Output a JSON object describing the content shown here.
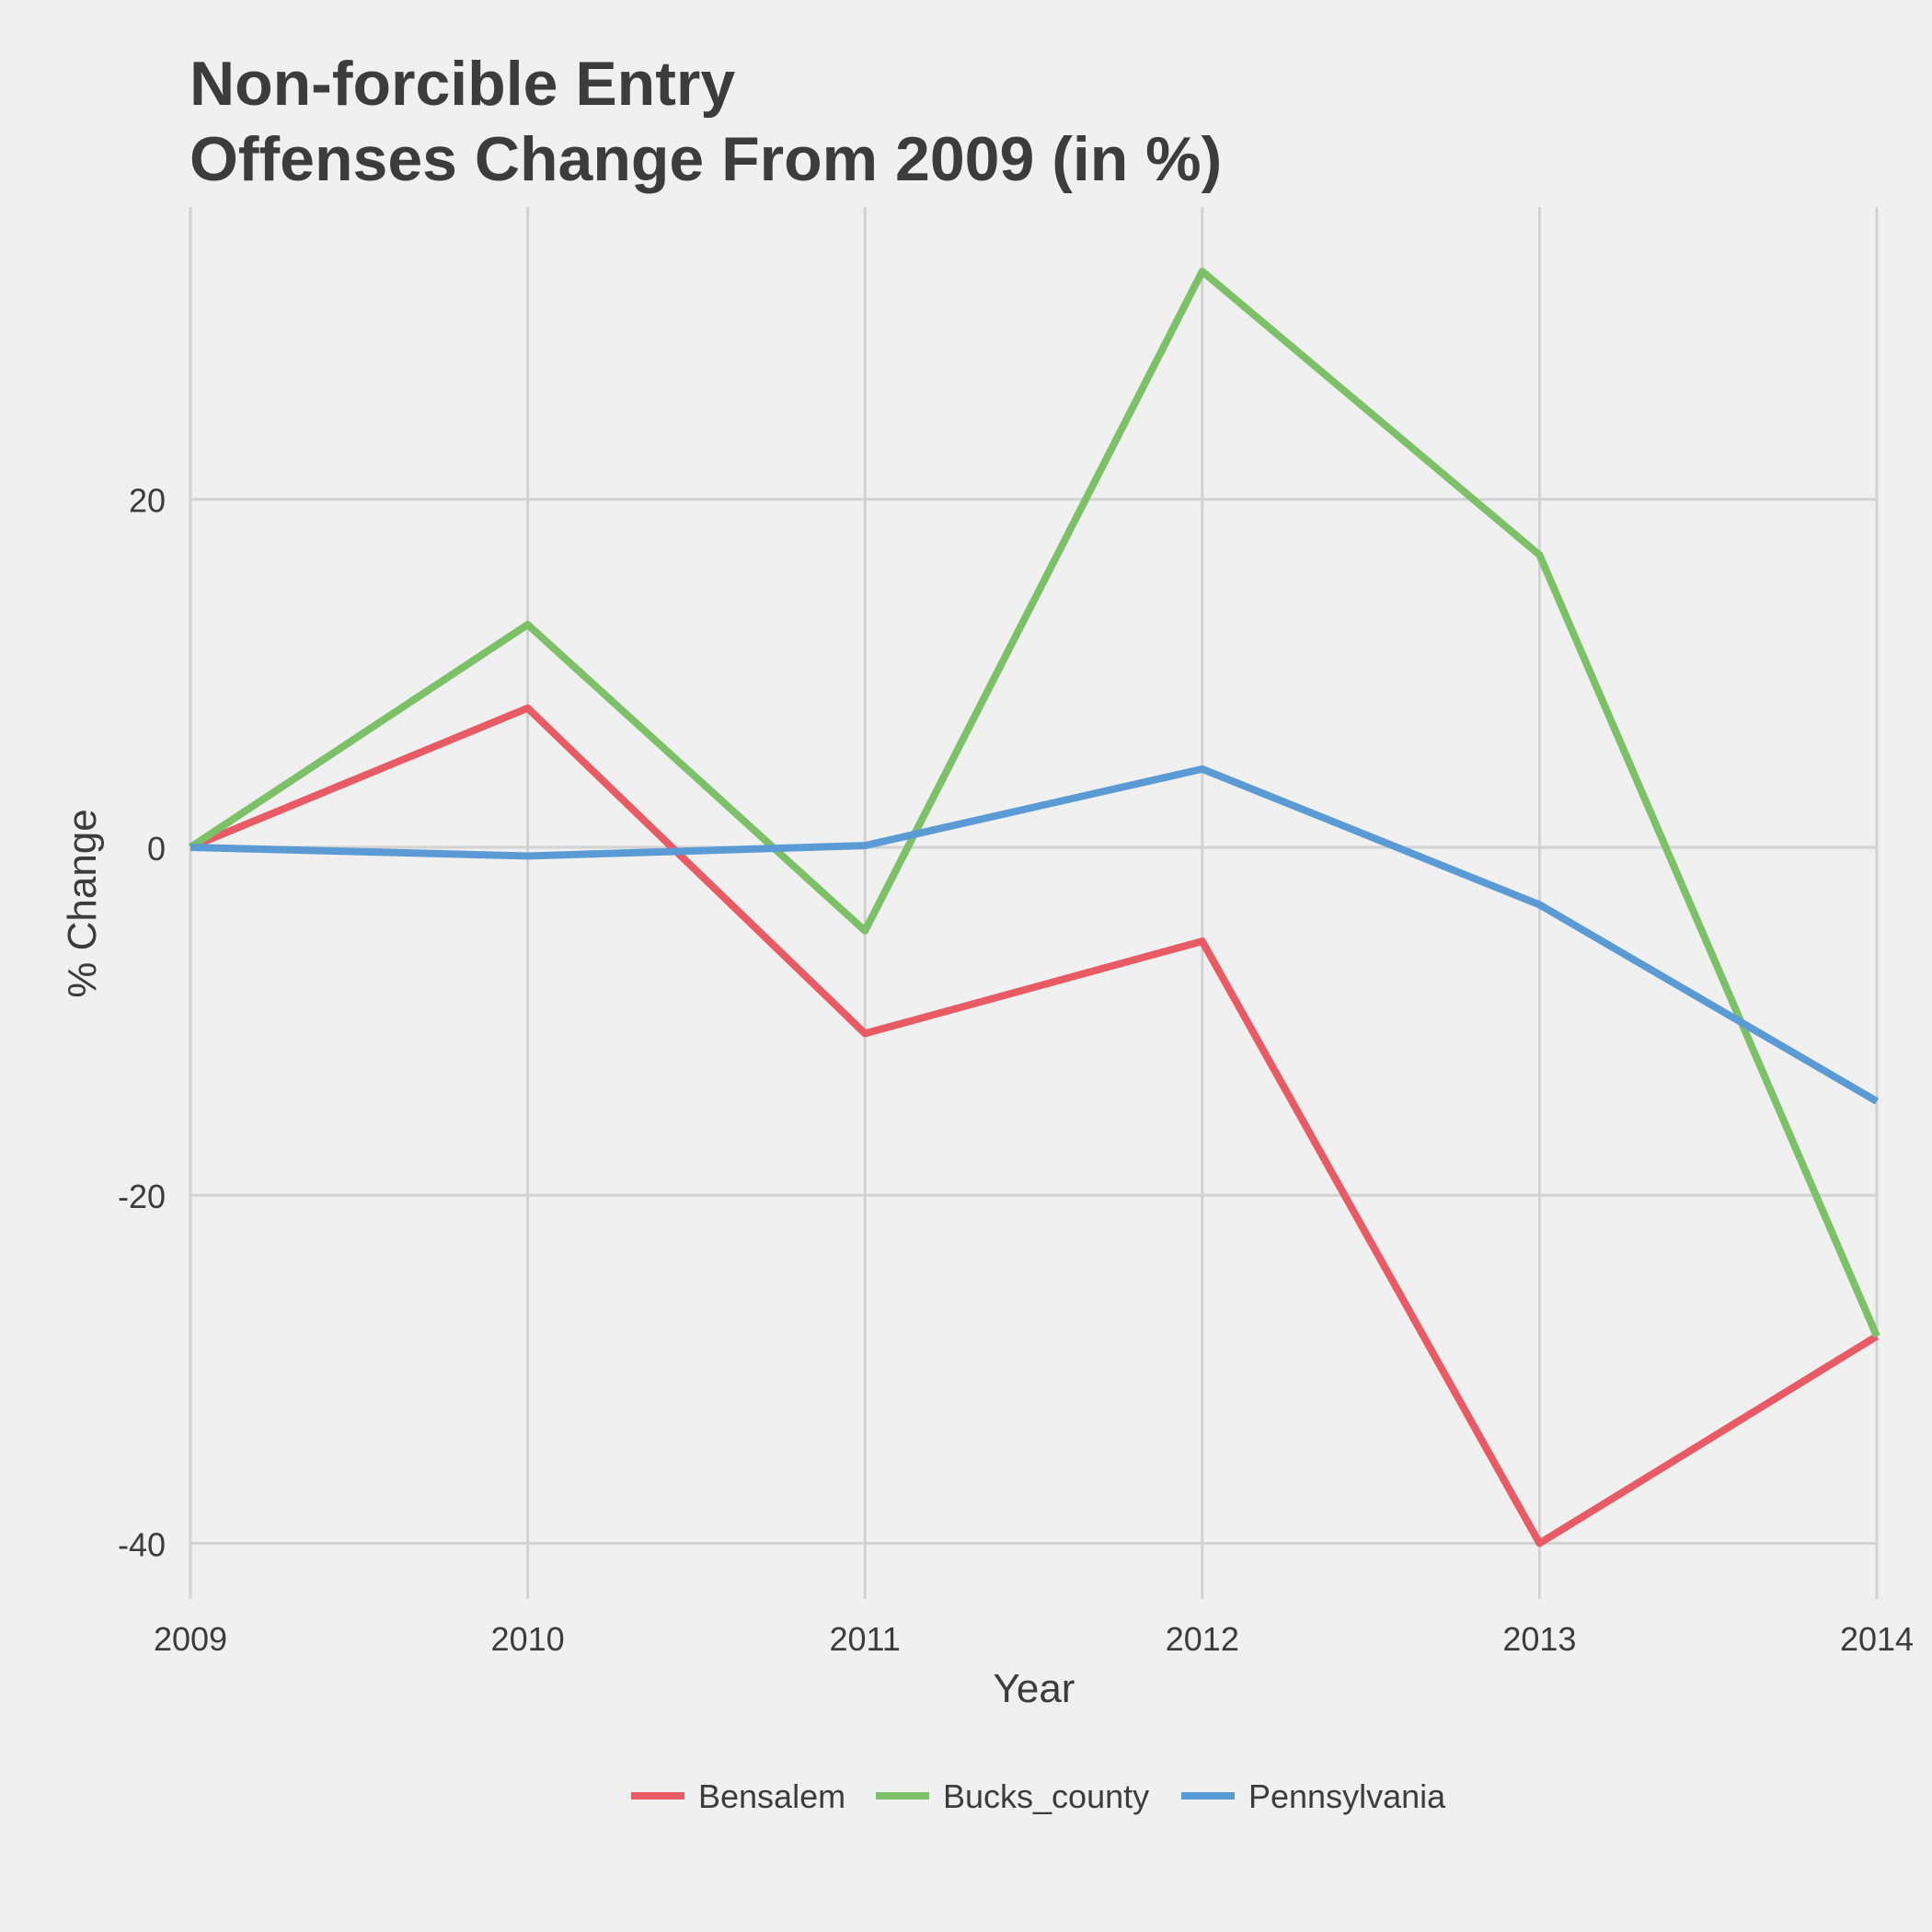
{
  "chart_data": {
    "type": "line",
    "title_lines": [
      "Non-forcible Entry",
      "Offenses Change From 2009 (in %)"
    ],
    "xlabel": "Year",
    "ylabel": "% Change",
    "x": [
      2009,
      2010,
      2011,
      2012,
      2013,
      2014
    ],
    "x_ticks": [
      "2009",
      "2010",
      "2011",
      "2012",
      "2013",
      "2014"
    ],
    "y_ticks": [
      20,
      0,
      -20,
      -40
    ],
    "y_tick_labels": [
      "20",
      "0",
      "-20",
      "-40"
    ],
    "ylim": [
      -43.2,
      36.8
    ],
    "xlim": [
      2009,
      2014
    ],
    "grid": true,
    "legend_position": "bottom",
    "series": [
      {
        "name": "Bensalem",
        "color": "#e85a64",
        "values": [
          0,
          8,
          -10.7,
          -5.4,
          -40,
          -28.1
        ]
      },
      {
        "name": "Bucks_county",
        "color": "#7cc167",
        "values": [
          0,
          12.8,
          -4.8,
          33.1,
          16.8,
          -28.1
        ]
      },
      {
        "name": "Pennsylvania",
        "color": "#5b9bd5",
        "values": [
          0,
          -0.5,
          0.1,
          4.5,
          -3.3,
          -14.6
        ]
      }
    ]
  }
}
